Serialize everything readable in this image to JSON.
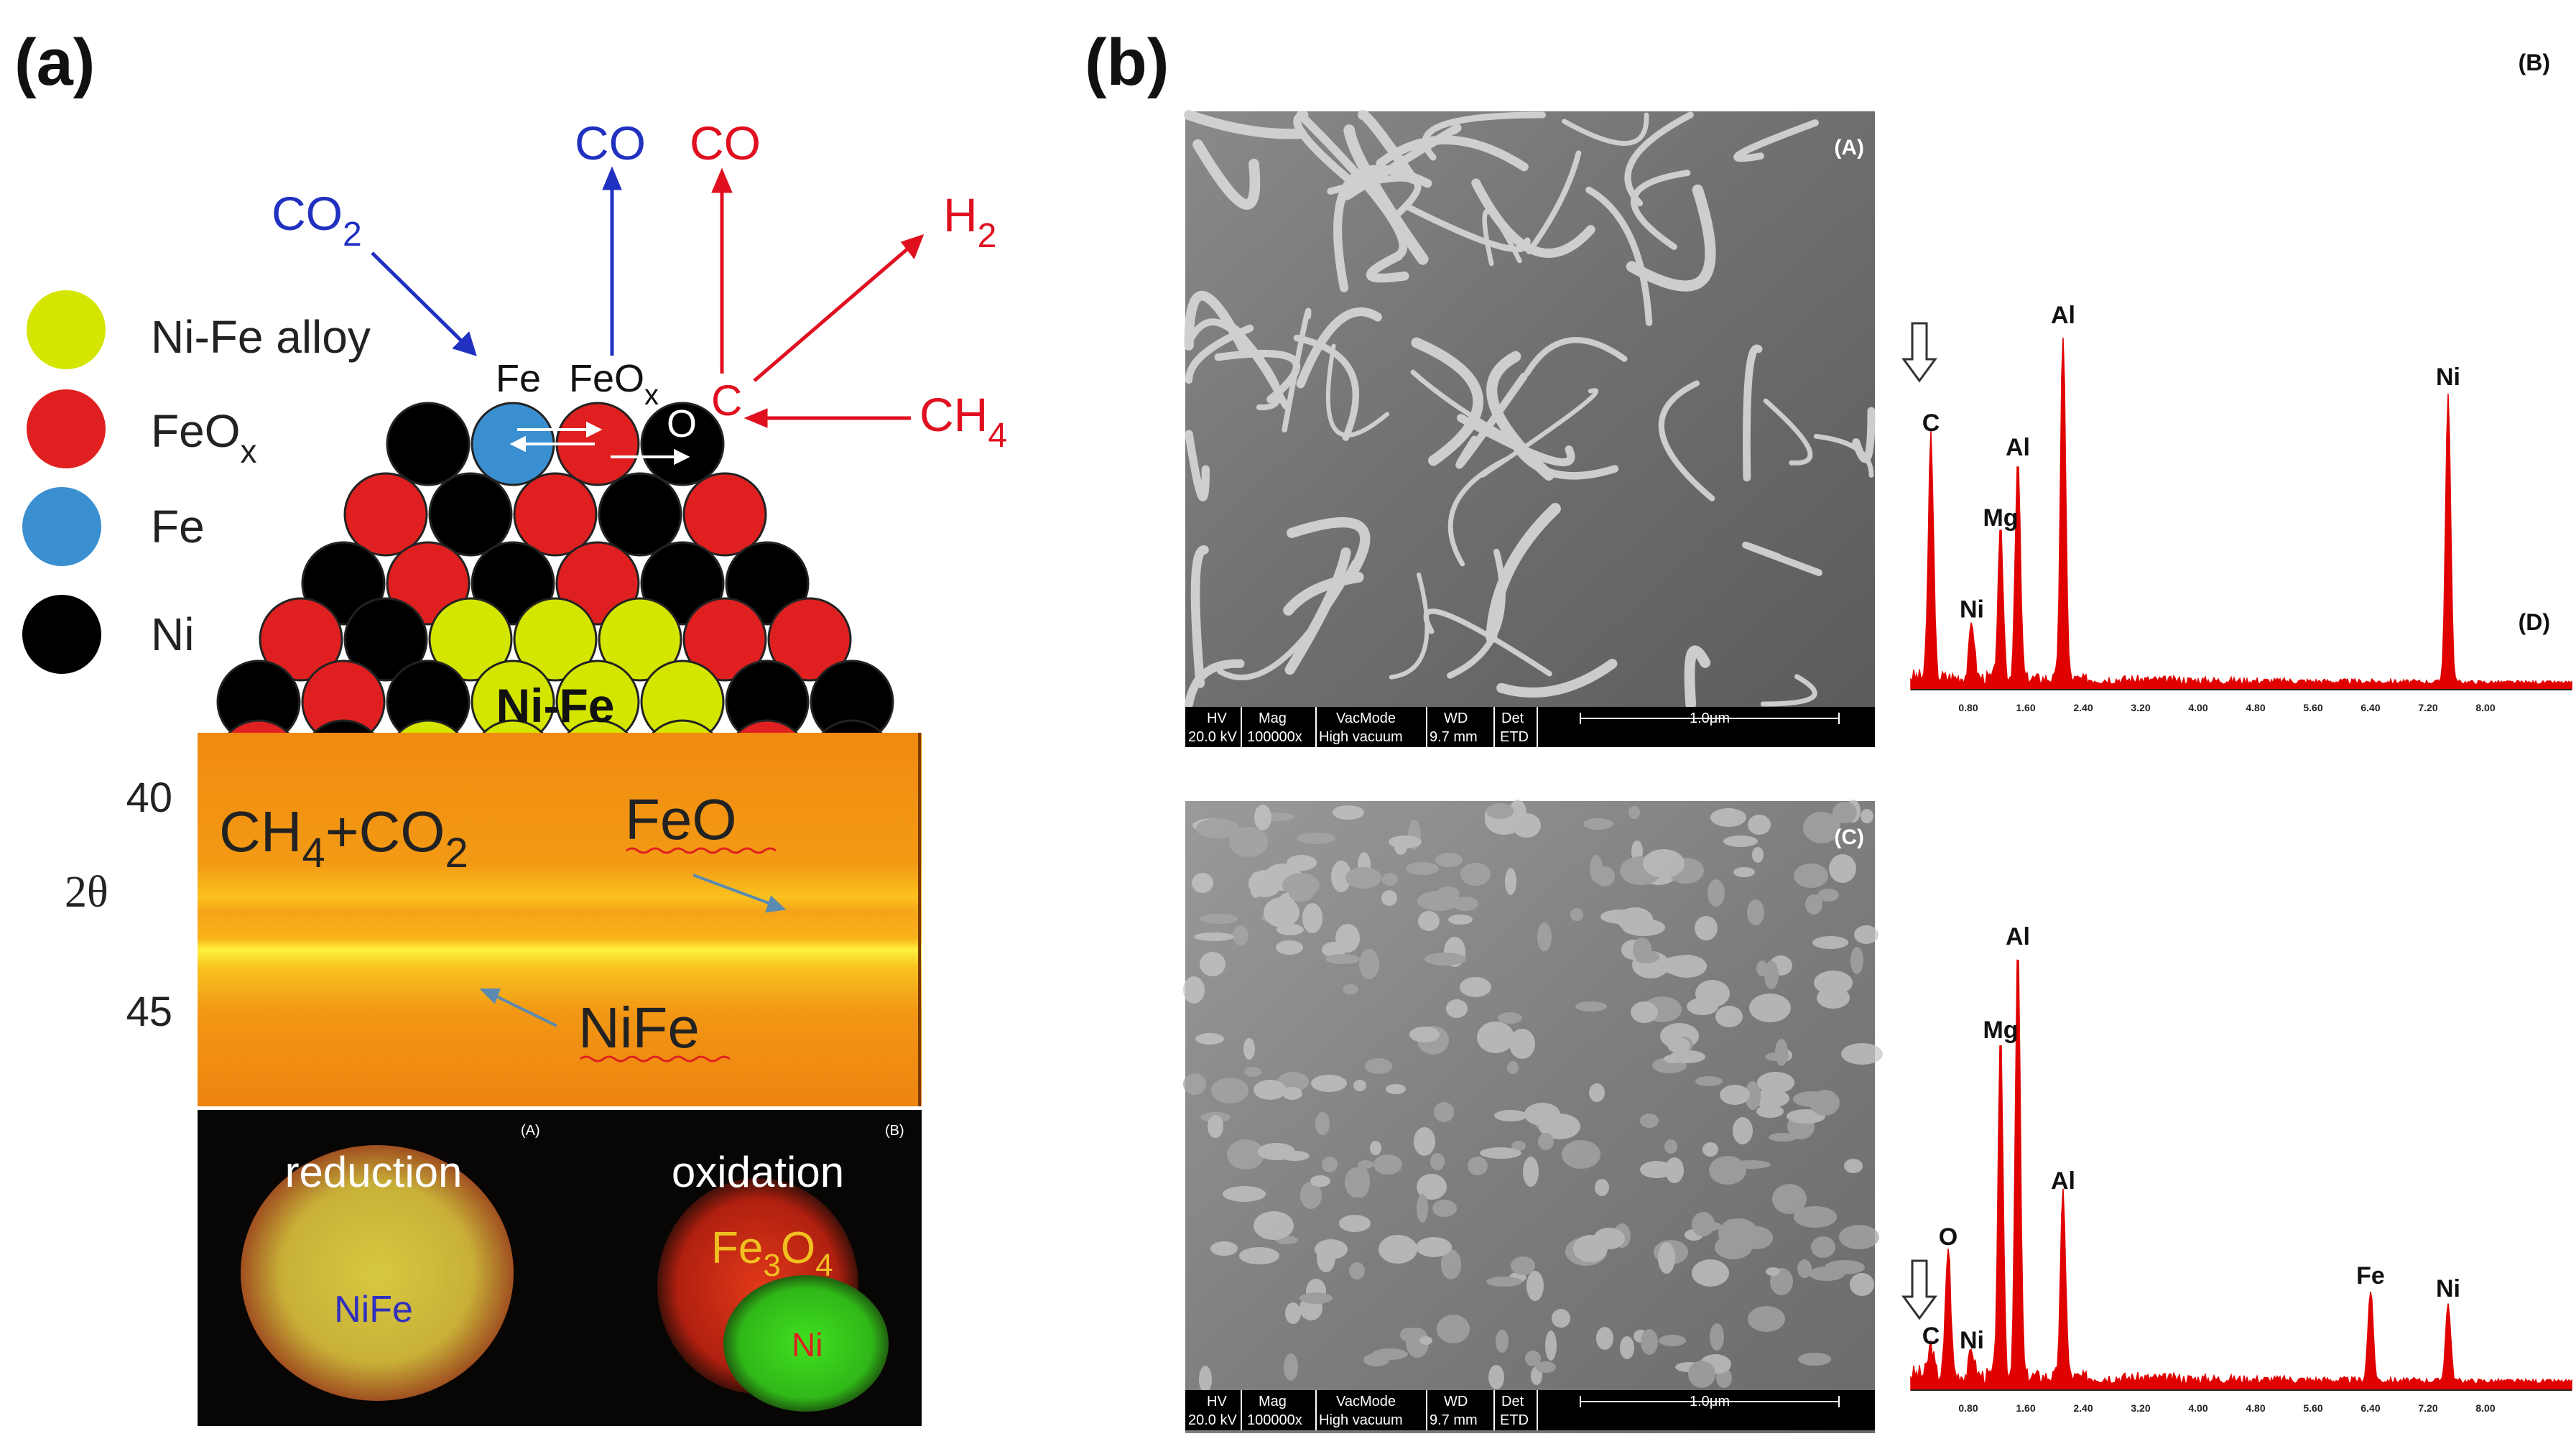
{
  "panel_a": {
    "label": "(a)",
    "legend": [
      {
        "label": "Ni-Fe alloy",
        "color": "#d4e600"
      },
      {
        "label": "FeO",
        "sub": "x",
        "color": "#e02020"
      },
      {
        "label": "Fe",
        "color": "#3a8fd0"
      },
      {
        "label": "Ni",
        "color": "#000000"
      }
    ],
    "species": {
      "co2_in": {
        "main": "CO",
        "sub": "2"
      },
      "co_blue": {
        "main": "CO"
      },
      "co_red": {
        "main": "CO"
      },
      "h2": {
        "main": "H",
        "sub": "2"
      },
      "ch4": {
        "main": "CH",
        "sub": "4"
      }
    },
    "surface_labels": {
      "fe": "Fe",
      "feox": {
        "main": "FeO",
        "sub": "x"
      },
      "c": "C",
      "o": "O",
      "core": "Ni-Fe"
    },
    "xrd": {
      "tick_40": "40",
      "tick_45": "45",
      "axis": "2θ",
      "gas": {
        "p1": "CH",
        "s1": "4",
        "p2": "+CO",
        "s2": "2"
      },
      "feo": "FeO",
      "nife": "NiFe"
    },
    "maps": {
      "left_title": "reduction",
      "left_inner": "NiFe",
      "left_tag": "(A)",
      "right_title": "oxidation",
      "right_fe3o4": {
        "p1": "Fe",
        "s1": "3",
        "p2": "O",
        "s2": "4"
      },
      "right_ni": "Ni",
      "right_tag": "(B)"
    },
    "colors": {
      "nife": "#d4e600",
      "feox": "#e02020",
      "fe": "#3a8fd0",
      "ni": "#000000",
      "blue": "#2030c0",
      "red": "#e01020"
    }
  },
  "panel_b": {
    "label": "(b)",
    "sem_top": {
      "tag": "(A)",
      "databar": {
        "hv": "HV",
        "hv_val": "20.0 kV",
        "mag": "Mag",
        "mag_val": "100000x",
        "vac": "VacMode",
        "vac_val": "High vacuum",
        "wd": "WD",
        "wd_val": "9.7 mm",
        "det": "Det",
        "det_val": "ETD",
        "scale": "1.0μm"
      }
    },
    "sem_bottom": {
      "tag": "(C)",
      "databar": {
        "hv": "HV",
        "hv_val": "20.0 kV",
        "mag": "Mag",
        "mag_val": "100000x",
        "vac": "VacMode",
        "vac_val": "High vacuum",
        "wd": "WD",
        "wd_val": "9.7 mm",
        "det": "Det",
        "det_val": "ETD",
        "scale": "1.0μm"
      }
    }
  },
  "chart_data": [
    {
      "type": "line",
      "tag": "(B)",
      "xlim": [
        0,
        9.2
      ],
      "x_ticks": [
        "0.80",
        "1.60",
        "2.40",
        "3.20",
        "4.00",
        "4.80",
        "5.60",
        "6.40",
        "7.20",
        "8.00"
      ],
      "peaks": [
        {
          "label": "C",
          "x": 0.28,
          "y": 0.69
        },
        {
          "label": "Ni",
          "x": 0.85,
          "y": 0.16
        },
        {
          "label": "Mg",
          "x": 1.25,
          "y": 0.42
        },
        {
          "label": "Al",
          "x": 1.49,
          "y": 0.62
        },
        {
          "label": "Al",
          "x": 2.12,
          "y": 1.0
        },
        {
          "label": "Ni",
          "x": 7.48,
          "y": 0.82
        }
      ],
      "arrow_label": "C",
      "color": "#e00000"
    },
    {
      "type": "line",
      "tag": "(D)",
      "xlim": [
        0,
        9.2
      ],
      "x_ticks": [
        "0.80",
        "1.60",
        "2.40",
        "3.20",
        "4.00",
        "4.80",
        "5.60",
        "6.40",
        "7.20",
        "8.00"
      ],
      "peaks": [
        {
          "label": "C",
          "x": 0.28,
          "y": 0.07
        },
        {
          "label": "O",
          "x": 0.52,
          "y": 0.3
        },
        {
          "label": "Ni",
          "x": 0.85,
          "y": 0.06
        },
        {
          "label": "Mg",
          "x": 1.25,
          "y": 0.78
        },
        {
          "label": "Al",
          "x": 1.49,
          "y": 1.0
        },
        {
          "label": "Al",
          "x": 2.12,
          "y": 0.43
        },
        {
          "label": "Fe",
          "x": 6.4,
          "y": 0.21
        },
        {
          "label": "Ni",
          "x": 7.48,
          "y": 0.18
        }
      ],
      "arrow_label": "C",
      "color": "#e00000"
    }
  ]
}
